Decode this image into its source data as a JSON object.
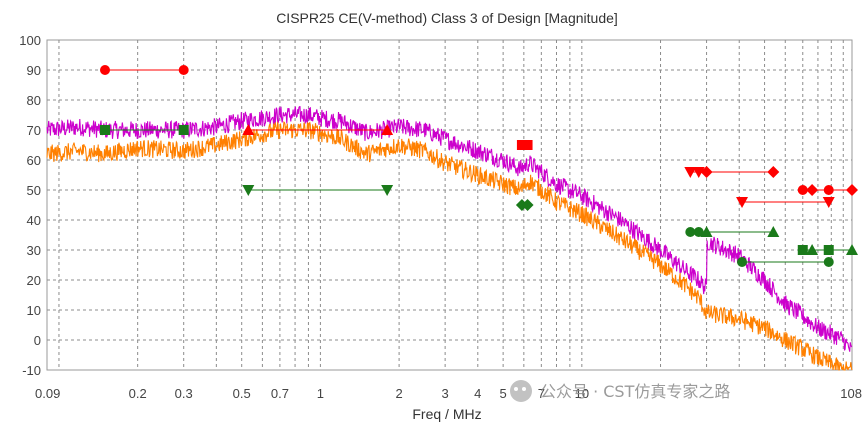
{
  "chart_data": {
    "type": "line",
    "title": "CISPR25 CE(V-method) Class 3 of Design [Magnitude]",
    "xlabel": "Freq / MHz",
    "ylabel": "",
    "x_scale": "log",
    "xlim": [
      0.09,
      108
    ],
    "ylim": [
      -10,
      100
    ],
    "x_ticks": [
      0.09,
      0.2,
      0.3,
      0.5,
      0.7,
      1,
      2,
      3,
      4,
      5,
      7,
      10,
      108
    ],
    "x_tick_labels": [
      "0.09",
      "0.2",
      "0.3",
      "0.5",
      "0.7",
      "1",
      "2",
      "3",
      "4",
      "5",
      "7",
      "10",
      "108"
    ],
    "y_ticks": [
      -10,
      0,
      10,
      20,
      30,
      40,
      50,
      60,
      70,
      80,
      90,
      100
    ],
    "grid": true,
    "series": [
      {
        "color": "#cc00cc",
        "noise": 3,
        "points": [
          [
            0.09,
            70
          ],
          [
            0.12,
            71
          ],
          [
            0.15,
            70
          ],
          [
            0.2,
            70
          ],
          [
            0.3,
            70
          ],
          [
            0.4,
            71
          ],
          [
            0.5,
            73
          ],
          [
            0.7,
            75
          ],
          [
            0.9,
            75
          ],
          [
            1.0,
            74
          ],
          [
            1.2,
            73
          ],
          [
            1.5,
            69
          ],
          [
            2.0,
            71
          ],
          [
            2.5,
            70
          ],
          [
            3.0,
            67
          ],
          [
            4.0,
            63
          ],
          [
            5.0,
            60
          ],
          [
            5.8,
            57
          ],
          [
            6.3,
            59
          ],
          [
            7.0,
            56
          ],
          [
            8.0,
            52
          ],
          [
            10.0,
            48
          ],
          [
            14.0,
            40
          ],
          [
            20.0,
            30
          ],
          [
            25.0,
            23
          ],
          [
            28.0,
            20
          ],
          [
            30.0,
            17
          ],
          [
            30.01,
            33
          ],
          [
            40.0,
            28
          ],
          [
            50.0,
            20
          ],
          [
            60.0,
            12
          ],
          [
            70.0,
            8
          ],
          [
            80.0,
            4
          ],
          [
            90.0,
            2
          ],
          [
            100.0,
            0
          ],
          [
            108.0,
            -4
          ]
        ]
      },
      {
        "color": "#ff8000",
        "noise": 3,
        "points": [
          [
            0.09,
            62
          ],
          [
            0.12,
            63
          ],
          [
            0.15,
            62
          ],
          [
            0.2,
            64
          ],
          [
            0.3,
            63
          ],
          [
            0.4,
            65
          ],
          [
            0.5,
            67
          ],
          [
            0.7,
            70
          ],
          [
            0.9,
            70
          ],
          [
            1.0,
            69
          ],
          [
            1.2,
            67
          ],
          [
            1.5,
            62
          ],
          [
            2.0,
            65
          ],
          [
            2.5,
            63
          ],
          [
            3.0,
            59
          ],
          [
            4.0,
            55
          ],
          [
            5.0,
            52
          ],
          [
            5.8,
            50
          ],
          [
            6.3,
            53
          ],
          [
            7.0,
            50
          ],
          [
            8.0,
            46
          ],
          [
            10.0,
            42
          ],
          [
            14.0,
            34
          ],
          [
            20.0,
            25
          ],
          [
            25.0,
            18
          ],
          [
            28.0,
            14
          ],
          [
            30.0,
            9
          ],
          [
            40.0,
            7
          ],
          [
            50.0,
            4
          ],
          [
            60.0,
            0
          ],
          [
            70.0,
            -3
          ],
          [
            80.0,
            -6
          ],
          [
            90.0,
            -8
          ],
          [
            100.0,
            -10
          ],
          [
            108.0,
            -10
          ]
        ]
      }
    ],
    "limit_lines": [
      {
        "color": "#ff0000",
        "marker": "circle",
        "x1": 0.15,
        "x2": 0.3,
        "y": 90
      },
      {
        "color": "#1a7a1a",
        "marker": "square",
        "x1": 0.15,
        "x2": 0.3,
        "y": 70
      },
      {
        "color": "#ff0000",
        "marker": "triangle-up",
        "x1": 0.53,
        "x2": 1.8,
        "y": 70
      },
      {
        "color": "#1a7a1a",
        "marker": "triangle-down",
        "x1": 0.53,
        "x2": 1.8,
        "y": 50
      },
      {
        "color": "#ff0000",
        "marker": "square",
        "x1": 5.9,
        "x2": 6.2,
        "y": 65
      },
      {
        "color": "#1a7a1a",
        "marker": "diamond",
        "x1": 5.9,
        "x2": 6.2,
        "y": 45
      },
      {
        "color": "#ff0000",
        "marker": "triangle-down",
        "x1": 26,
        "x2": 28,
        "y": 56
      },
      {
        "color": "#ff0000",
        "marker": "diamond",
        "x1": 30,
        "x2": 54,
        "y": 56
      },
      {
        "color": "#1a7a1a",
        "marker": "circle",
        "x1": 26,
        "x2": 28,
        "y": 36
      },
      {
        "color": "#1a7a1a",
        "marker": "triangle-up",
        "x1": 30,
        "x2": 54,
        "y": 36
      },
      {
        "color": "#ff0000",
        "marker": "triangle-down",
        "x1": 41,
        "x2": 88,
        "y": 46
      },
      {
        "color": "#1a7a1a",
        "marker": "circle",
        "x1": 41,
        "x2": 88,
        "y": 26
      },
      {
        "color": "#ff0000",
        "marker": "diamond",
        "x1": 76,
        "x2": 108,
        "y": 50
      },
      {
        "color": "#1a7a1a",
        "marker": "triangle-up",
        "x1": 76,
        "x2": 108,
        "y": 30
      },
      {
        "color": "#ff0000",
        "marker": "circle",
        "x1": 70,
        "x2": 88,
        "y": 50
      },
      {
        "color": "#1a7a1a",
        "marker": "square",
        "x1": 70,
        "x2": 88,
        "y": 30
      }
    ]
  },
  "watermark": {
    "text": "公众号 · CST仿真专家之路",
    "icon": "wechat-icon"
  }
}
